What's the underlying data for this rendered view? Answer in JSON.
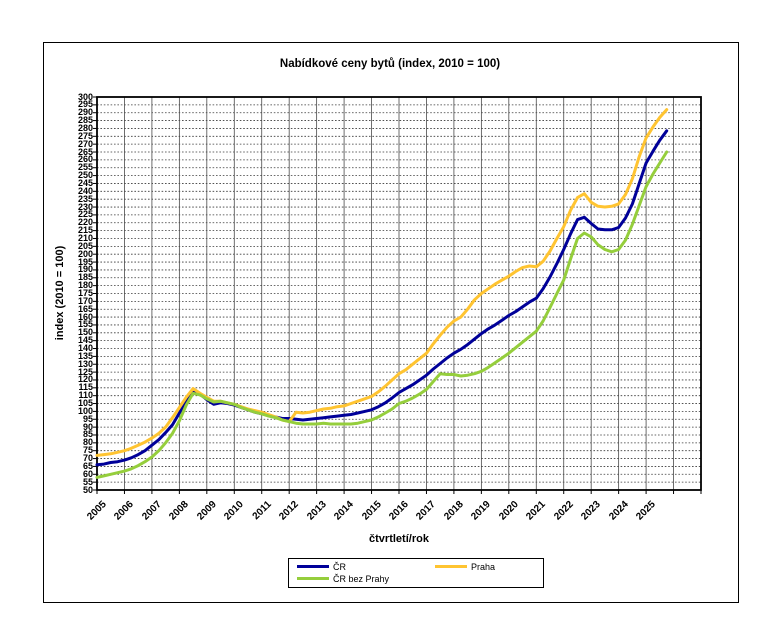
{
  "chart_data": {
    "type": "line",
    "title": "Nabídkové ceny bytů (index, 2010 = 100)",
    "xlabel": "čtvrtletí/rok",
    "ylabel": "index (2010 = 100)",
    "ylim": [
      50,
      300
    ],
    "ytick_step": 5,
    "grid": {
      "horizontal": "dotted",
      "vertical": "solid"
    },
    "legend_position": "bottom",
    "x_years": [
      2005,
      2006,
      2007,
      2008,
      2009,
      2010,
      2011,
      2012,
      2013,
      2014,
      2015,
      2016,
      2017,
      2018,
      2019,
      2020,
      2021,
      2022,
      2023,
      2024,
      2025
    ],
    "points_per_year": 4,
    "series": [
      {
        "name": "ČR",
        "color": "#000099",
        "values": [
          66,
          66.5,
          67.5,
          68,
          69,
          70.5,
          72.5,
          75,
          78.5,
          82,
          86.5,
          91.5,
          99,
          106,
          112.5,
          111,
          107.5,
          104.5,
          105.5,
          105,
          104,
          102.5,
          101,
          99.5,
          98.5,
          97.5,
          96.5,
          95.5,
          95.5,
          95,
          94.5,
          95,
          95.5,
          96,
          96.5,
          97,
          97.5,
          98,
          99,
          100,
          101,
          103,
          105.5,
          108.5,
          112,
          114.5,
          117,
          120,
          123,
          127,
          130.5,
          134,
          137,
          139.5,
          142.5,
          146,
          149.5,
          152.5,
          155,
          158,
          161,
          163.5,
          166.5,
          169.5,
          172,
          178,
          185.5,
          194,
          203,
          213,
          222,
          223.5,
          219.5,
          216,
          215.5,
          215.5,
          217,
          223,
          232,
          245,
          258,
          265.5,
          272.5,
          278.5
        ]
      },
      {
        "name": "Praha",
        "color": "#FFC431",
        "values": [
          72,
          72.5,
          73,
          74,
          75,
          76.5,
          78.5,
          80.5,
          83,
          86,
          90,
          96,
          102.5,
          109,
          114.5,
          111.5,
          109,
          106.5,
          106.5,
          105.5,
          104.5,
          103,
          101.5,
          100.5,
          99.5,
          98,
          96.5,
          94.5,
          93.5,
          99.5,
          99,
          99.5,
          100.5,
          101.5,
          102,
          103,
          103.5,
          105,
          106.5,
          108,
          109.5,
          112.5,
          116,
          120,
          124,
          126.5,
          130,
          133.5,
          137,
          143,
          148.5,
          153.5,
          157.5,
          160,
          165,
          171,
          175,
          178,
          181,
          183.5,
          186,
          189,
          191.5,
          192.5,
          192,
          195.5,
          202,
          210,
          217.5,
          228,
          236,
          238.5,
          233,
          230.5,
          230,
          230.5,
          232,
          238,
          248,
          262,
          274,
          281,
          287,
          292
        ]
      },
      {
        "name": "ČR bez Prahy",
        "color": "#95CE3C",
        "values": [
          58,
          59,
          60,
          61,
          62,
          63.5,
          65.5,
          68,
          71,
          75,
          80,
          86,
          94,
          104,
          111.5,
          110.5,
          108,
          106,
          106.5,
          105.5,
          104.5,
          102.5,
          101,
          99.5,
          98.5,
          97,
          96,
          94.5,
          93.5,
          92.5,
          92,
          92,
          92,
          92.5,
          92,
          92,
          92,
          92,
          92.5,
          93.5,
          94.5,
          96.5,
          99,
          101.5,
          105,
          106.5,
          108.5,
          111,
          114,
          119,
          124,
          123.5,
          123.5,
          122.5,
          123,
          124,
          125.5,
          128,
          131,
          134,
          137,
          140.5,
          144,
          147.5,
          151,
          157.5,
          166,
          175,
          183.5,
          197,
          210,
          213.5,
          211,
          206,
          203,
          201.5,
          203,
          209,
          219,
          231,
          243,
          251,
          258,
          265
        ]
      }
    ],
    "legend_order": [
      0,
      1,
      2
    ]
  }
}
